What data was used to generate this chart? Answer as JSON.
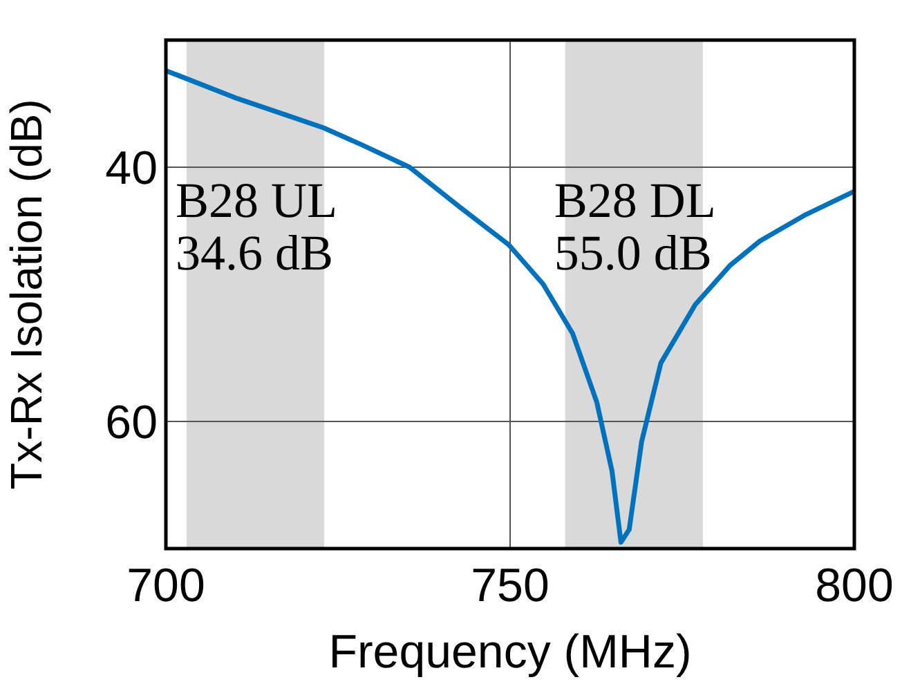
{
  "chart_data": {
    "type": "line",
    "xlabel": "Frequency (MHz)",
    "ylabel": "Tx-Rx Isolation (dB)",
    "xlim": [
      700,
      800
    ],
    "xticks": [
      700,
      750,
      800
    ],
    "ylim": [
      70,
      30
    ],
    "yticks": [
      40,
      60
    ],
    "grid": true,
    "bands": [
      {
        "axis": "x",
        "from": 703,
        "to": 723,
        "label": "B28 UL",
        "color": "#d9d9d9"
      },
      {
        "axis": "x",
        "from": 758,
        "to": 778,
        "label": "B28 DL",
        "color": "#d9d9d9"
      }
    ],
    "annotations": [
      "34.6 dB",
      "55.0 dB"
    ],
    "series": [
      {
        "color": "#0072bd",
        "x": [
          700,
          710.4,
          717.5,
          722.9,
          728.3,
          735.4,
          742.6,
          749.8,
          754.8,
          759.1,
          762.6,
          764.8,
          766.1,
          767.3,
          769.1,
          771.9,
          776.9,
          782,
          786.3,
          792.7,
          800
        ],
        "values": [
          32.4,
          34.6,
          35.9,
          36.9,
          38.2,
          40,
          43.1,
          46.1,
          49.2,
          53.1,
          58.5,
          63.9,
          69.5,
          68.5,
          61.6,
          55.4,
          50.8,
          47.7,
          45.8,
          43.8,
          41.9
        ]
      }
    ]
  }
}
